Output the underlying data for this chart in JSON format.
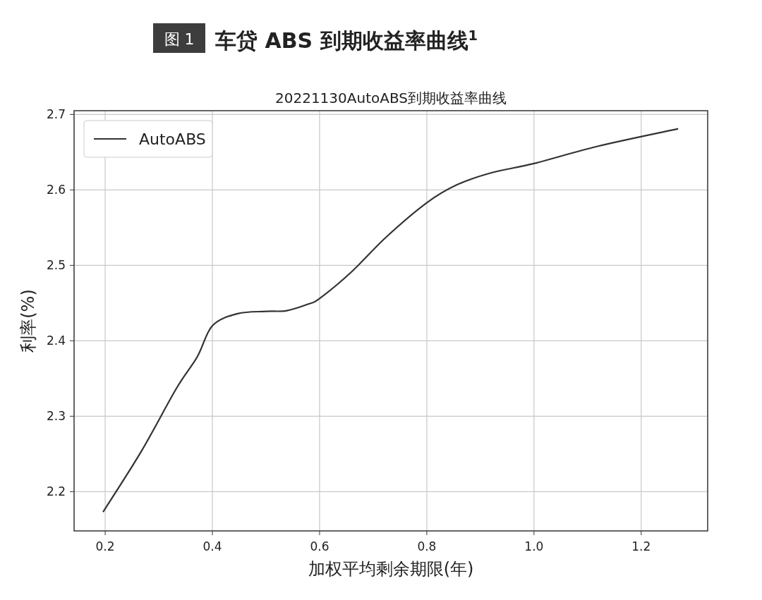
{
  "chart_data": {
    "type": "line",
    "title": "车贷 ABS 到期收益率曲线$^{1}$",
    "subtitle": "20221130AutoABS到期收益率曲线",
    "xlabel": "加权平均剩余期限(年)",
    "ylabel": "利率(%)",
    "annotations": [
      "图 1"
    ],
    "xlim": [
      0.142,
      1.324
    ],
    "ylim": [
      2.148,
      2.705
    ],
    "xticks": [
      {
        "value": 0.2,
        "label": "0.2"
      },
      {
        "value": 0.4,
        "label": "0.4"
      },
      {
        "value": 0.6,
        "label": "0.6"
      },
      {
        "value": 0.8,
        "label": "0.8"
      },
      {
        "value": 1.0,
        "label": "1.0"
      },
      {
        "value": 1.2,
        "label": "1.2"
      }
    ],
    "yticks": [
      2.2,
      2.3,
      2.4,
      2.5,
      2.6,
      2.7
    ],
    "grid": true,
    "legend": "top left",
    "series": [
      {
        "name": "AutoABS",
        "color": "#333333",
        "x": [
          0.196,
          0.267,
          0.333,
          0.372,
          0.4,
          0.447,
          0.5,
          0.539,
          0.58,
          0.6,
          0.659,
          0.725,
          0.8,
          0.857,
          0.922,
          1.0,
          1.12,
          1.269
        ],
        "values": [
          2.173,
          2.253,
          2.337,
          2.379,
          2.42,
          2.436,
          2.439,
          2.44,
          2.449,
          2.456,
          2.491,
          2.538,
          2.583,
          2.607,
          2.623,
          2.635,
          2.658,
          2.681
        ]
      }
    ]
  }
}
